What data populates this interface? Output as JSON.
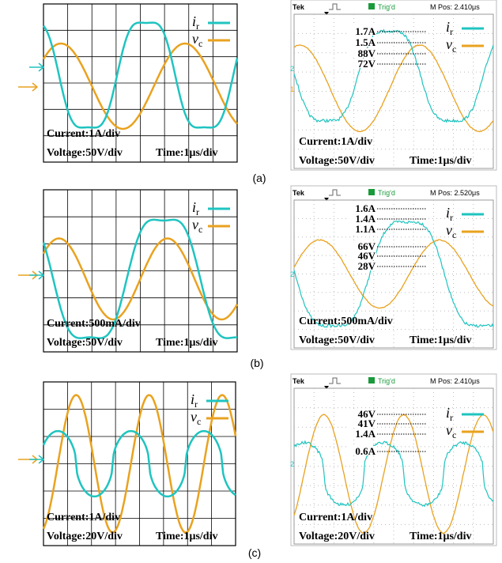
{
  "figure": {
    "panels": [
      {
        "label": "(a)",
        "simulation": {
          "legend": [
            {
              "symbol": "i",
              "sub": "r"
            },
            {
              "symbol": "v",
              "sub": "c"
            }
          ],
          "current": "Current:1A/div",
          "voltage": "Voltage:50V/div",
          "time": "Time:1μs/div"
        },
        "scope": {
          "brand": "Tek",
          "trigger": "Trig'd",
          "position": "M Pos: 2.410μs",
          "channels": [
            "2",
            "1"
          ],
          "readings": [
            "1.7A",
            "1.5A",
            "88V",
            "72V"
          ],
          "legend": [
            {
              "symbol": "i",
              "sub": "r"
            },
            {
              "symbol": "v",
              "sub": "c"
            }
          ],
          "current": "Current:1A/div",
          "voltage": "Voltage:50V/div",
          "time": "Time:1μs/div"
        }
      },
      {
        "label": "(b)",
        "simulation": {
          "legend": [
            {
              "symbol": "i",
              "sub": "r"
            },
            {
              "symbol": "v",
              "sub": "c"
            }
          ],
          "current": "Current:500mA/div",
          "voltage": "Voltage:50V/div",
          "time": "Time:1μs/div"
        },
        "scope": {
          "brand": "Tek",
          "trigger": "Trig'd",
          "position": "M Pos: 2.520μs",
          "channels": [
            "2"
          ],
          "readings": [
            "1.6A",
            "1.4A",
            "1.1A",
            "66V",
            "46V",
            "28V"
          ],
          "legend": [
            {
              "symbol": "i",
              "sub": "r"
            },
            {
              "symbol": "v",
              "sub": "c"
            }
          ],
          "current": "Current:500mA/div",
          "voltage": "Voltage:50V/div",
          "time": "Time:1μs/div"
        }
      },
      {
        "label": "(c)",
        "simulation": {
          "legend": [
            {
              "symbol": "i",
              "sub": "r"
            },
            {
              "symbol": "v",
              "sub": "c"
            }
          ],
          "current": "Current:1A/div",
          "voltage": "Voltage:20V/div",
          "time": "Time:1μs/div"
        },
        "scope": {
          "brand": "Tek",
          "trigger": "Trig'd",
          "position": "M Pos: 2.410μs",
          "channels": [
            "2"
          ],
          "readings": [
            "46V",
            "41V",
            "1.4A",
            "0.6A"
          ],
          "legend": [
            {
              "symbol": "i",
              "sub": "r"
            },
            {
              "symbol": "v",
              "sub": "c"
            }
          ],
          "current": "Current:1A/div",
          "voltage": "Voltage:20V/div",
          "time": "Time:1μs/div"
        }
      }
    ]
  }
}
